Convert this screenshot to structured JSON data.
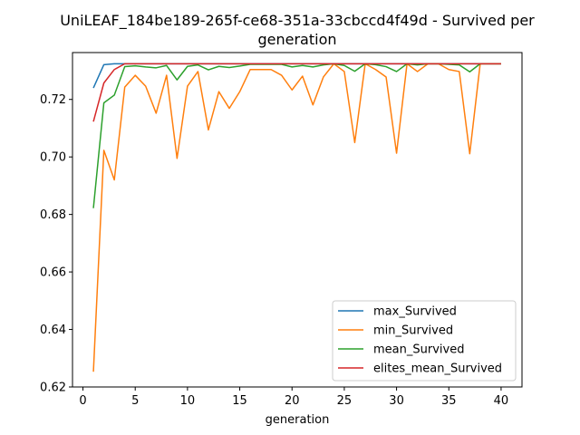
{
  "chart_data": {
    "type": "line",
    "title_lines": [
      "UniLEAF_184be189-265f-ce68-351a-33cbccd4f49d - Survived per",
      "generation"
    ],
    "xlabel": "generation",
    "ylabel": "",
    "xlim": [
      -1,
      42
    ],
    "ylim": [
      0.62,
      0.7363
    ],
    "xticks": [
      0,
      5,
      10,
      15,
      20,
      25,
      30,
      35,
      40
    ],
    "yticks": [
      0.62,
      0.64,
      0.66,
      0.68,
      0.7,
      0.72
    ],
    "ytick_labels": [
      "0.62",
      "0.64",
      "0.66",
      "0.68",
      "0.70",
      "0.72"
    ],
    "grid": false,
    "legend_position": "lower-right",
    "x": [
      1,
      2,
      3,
      4,
      5,
      6,
      7,
      8,
      9,
      10,
      11,
      12,
      13,
      14,
      15,
      16,
      17,
      18,
      19,
      20,
      21,
      22,
      23,
      24,
      25,
      26,
      27,
      28,
      29,
      30,
      31,
      32,
      33,
      34,
      35,
      36,
      37,
      38,
      39,
      40
    ],
    "series": [
      {
        "name": "max_Survived",
        "color": "#1f77b4",
        "values": [
          0.724,
          0.7321,
          0.7324,
          0.7324,
          0.7324,
          0.7324,
          0.7324,
          0.7324,
          0.7324,
          0.7324,
          0.7324,
          0.7324,
          0.7324,
          0.7324,
          0.7324,
          0.7324,
          0.7324,
          0.7324,
          0.7324,
          0.7324,
          0.7324,
          0.7324,
          0.7324,
          0.7324,
          0.7324,
          0.7324,
          0.7324,
          0.7324,
          0.7324,
          0.7324,
          0.7324,
          0.7324,
          0.7324,
          0.7324,
          0.7324,
          0.7324,
          0.7324,
          0.7324,
          0.7324,
          0.7324
        ]
      },
      {
        "name": "min_Survived",
        "color": "#ff7f0e",
        "values": [
          0.6253,
          0.7023,
          0.692,
          0.7243,
          0.7284,
          0.7246,
          0.7152,
          0.7284,
          0.6995,
          0.7246,
          0.7297,
          0.7094,
          0.7227,
          0.7169,
          0.7227,
          0.7304,
          0.7304,
          0.7304,
          0.7284,
          0.7233,
          0.7281,
          0.7181,
          0.7278,
          0.7324,
          0.7297,
          0.705,
          0.7324,
          0.7304,
          0.7278,
          0.7013,
          0.7324,
          0.7297,
          0.7324,
          0.7324,
          0.7304,
          0.7297,
          0.7011,
          0.7324,
          0.7324,
          0.7324
        ]
      },
      {
        "name": "mean_Survived",
        "color": "#2ca02c",
        "values": [
          0.6822,
          0.7188,
          0.7215,
          0.7314,
          0.7317,
          0.7313,
          0.731,
          0.7318,
          0.7268,
          0.7315,
          0.732,
          0.7303,
          0.7315,
          0.7311,
          0.7316,
          0.7322,
          0.7322,
          0.7322,
          0.7322,
          0.7313,
          0.7318,
          0.7313,
          0.732,
          0.7324,
          0.7318,
          0.7298,
          0.7324,
          0.7321,
          0.7314,
          0.7297,
          0.7324,
          0.732,
          0.7324,
          0.7324,
          0.7322,
          0.732,
          0.7296,
          0.7324,
          0.7324,
          0.7324
        ]
      },
      {
        "name": "elites_mean_Survived",
        "color": "#d62728",
        "values": [
          0.7123,
          0.7257,
          0.7304,
          0.7324,
          0.7324,
          0.7324,
          0.7324,
          0.7324,
          0.7324,
          0.7324,
          0.7324,
          0.7324,
          0.7324,
          0.7324,
          0.7324,
          0.7324,
          0.7324,
          0.7324,
          0.7324,
          0.7324,
          0.7324,
          0.7324,
          0.7324,
          0.7324,
          0.7324,
          0.7324,
          0.7324,
          0.7324,
          0.7324,
          0.7324,
          0.7324,
          0.7324,
          0.7324,
          0.7324,
          0.7324,
          0.7324,
          0.7324,
          0.7324,
          0.7324,
          0.7324
        ]
      }
    ]
  }
}
